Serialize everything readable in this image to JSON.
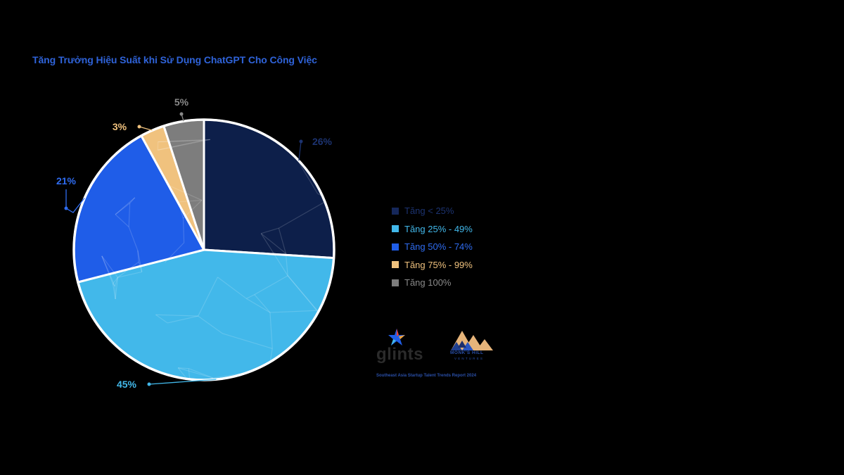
{
  "chart_data": {
    "type": "pie",
    "title": "Tăng Trưởng Hiệu Suất khi Sử Dụng ChatGPT Cho Công Việc",
    "categories": [
      "Tăng < 25%",
      "Tăng 25% - 49%",
      "Tăng 50% - 74%",
      "Tăng 75% - 99%",
      "Tăng 100%"
    ],
    "values": [
      26,
      45,
      21,
      3,
      5
    ],
    "data_labels": [
      "26%",
      "45%",
      "21%",
      "3%",
      "5%"
    ],
    "colors": [
      "#0d1f4a",
      "#42b8ea",
      "#1f5de8",
      "#f0c27e",
      "#7d7d7d"
    ],
    "label_colors": [
      "#1c3370",
      "#42b8ea",
      "#2f6cf0",
      "#f0c27e",
      "#8a8a8a"
    ],
    "legend_placement": "right"
  },
  "branding": {
    "glints": "glints",
    "monks_hill": "MONK'S HILL",
    "ventures": "VENTURES",
    "report": "Southeast Asia Startup Talent Trends Report 2024"
  }
}
